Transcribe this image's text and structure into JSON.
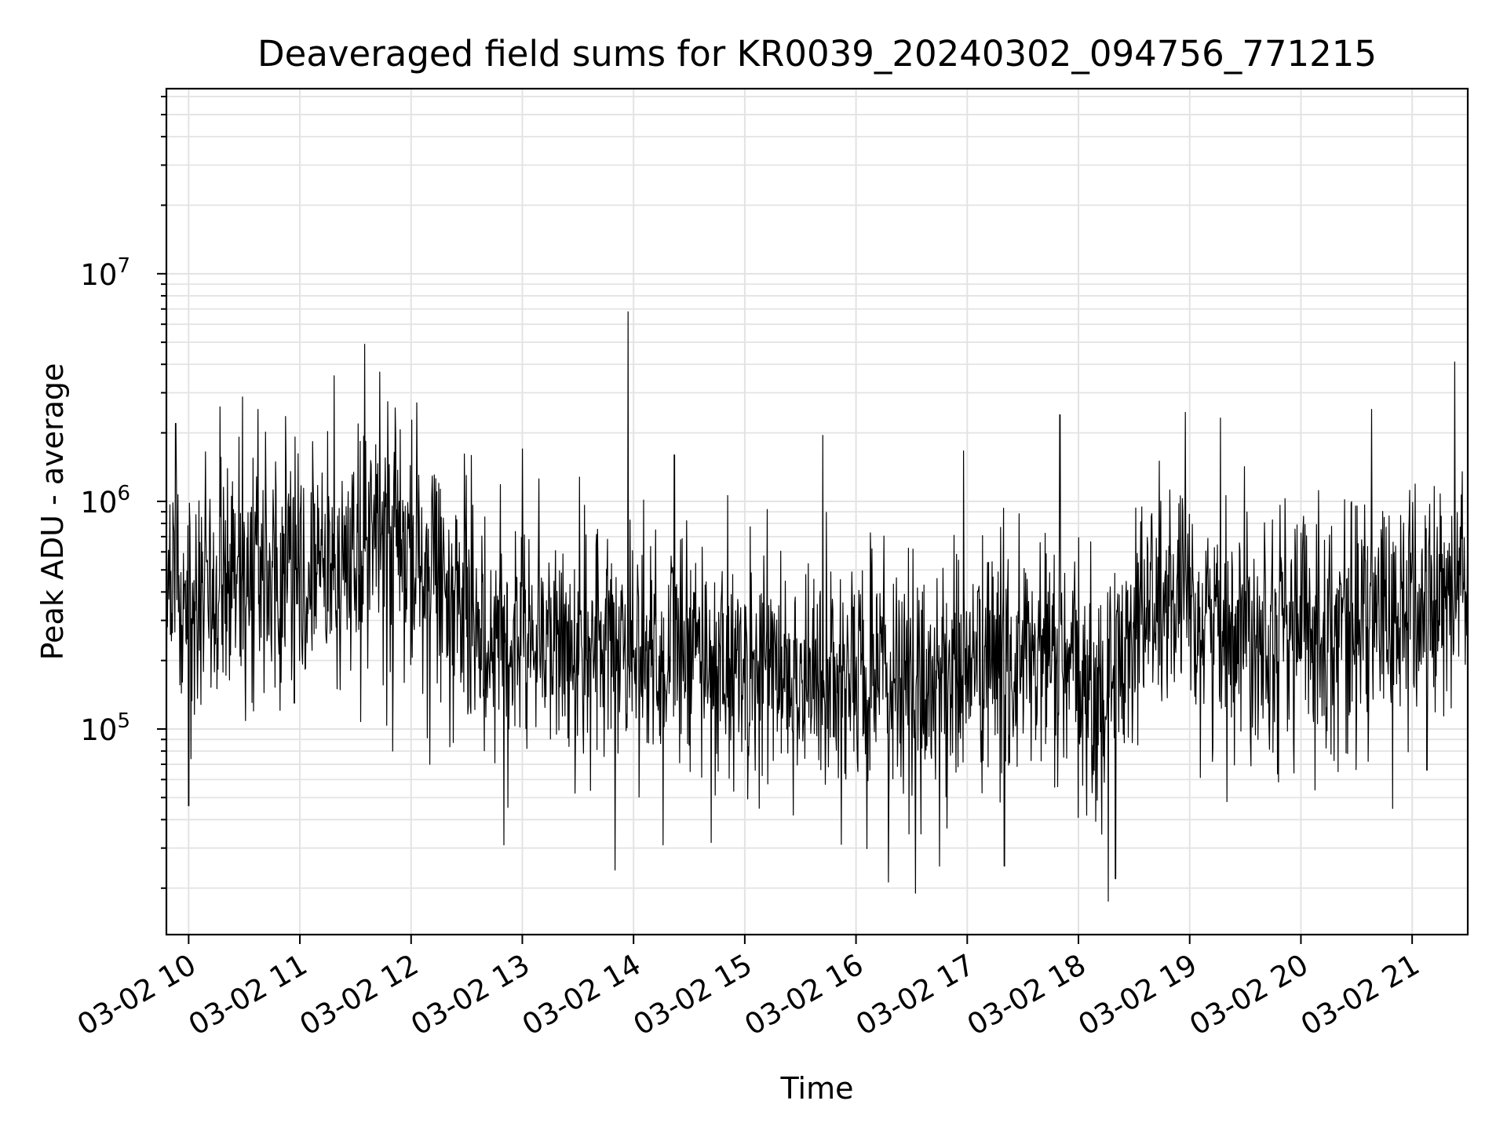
{
  "chart_data": {
    "type": "line",
    "title": "Deaveraged field sums for KR0039_20240302_094756_771215",
    "xlabel": "Time",
    "ylabel": "Peak ADU - average",
    "y_scale": "log",
    "ylim": [
      12500,
      65000000
    ],
    "xlim": [
      "03-02 09:48",
      "03-02 21:30"
    ],
    "x_ticks": [
      "03-02 10",
      "03-02 11",
      "03-02 12",
      "03-02 13",
      "03-02 14",
      "03-02 15",
      "03-02 16",
      "03-02 17",
      "03-02 18",
      "03-02 19",
      "03-02 20",
      "03-02 21"
    ],
    "y_ticks": [
      {
        "value": 100000,
        "base": "10",
        "exp": "5"
      },
      {
        "value": 1000000,
        "base": "10",
        "exp": "6"
      },
      {
        "value": 10000000,
        "base": "10",
        "exp": "7"
      }
    ],
    "grid": true,
    "line_color": "#000000",
    "series": [
      {
        "x": [
          "03-02 09:48",
          "03-02 10:00",
          "03-02 10:15",
          "03-02 10:30",
          "03-02 10:45",
          "03-02 11:00",
          "03-02 11:15",
          "03-02 11:30",
          "03-02 11:45",
          "03-02 12:00",
          "03-02 12:15",
          "03-02 12:30",
          "03-02 12:45",
          "03-02 13:00",
          "03-02 13:15",
          "03-02 13:30",
          "03-02 13:45",
          "03-02 14:00",
          "03-02 14:15",
          "03-02 14:30",
          "03-02 14:45",
          "03-02 15:00",
          "03-02 15:15",
          "03-02 15:30",
          "03-02 15:45",
          "03-02 16:00",
          "03-02 16:15",
          "03-02 16:30",
          "03-02 16:45",
          "03-02 17:00",
          "03-02 17:15",
          "03-02 17:30",
          "03-02 17:45",
          "03-02 18:00",
          "03-02 18:15",
          "03-02 18:30",
          "03-02 18:45",
          "03-02 19:00",
          "03-02 19:15",
          "03-02 19:30",
          "03-02 19:45",
          "03-02 20:00",
          "03-02 20:15",
          "03-02 20:30",
          "03-02 20:45",
          "03-02 21:00",
          "03-02 21:15",
          "03-02 21:30"
        ],
        "values": [
          300000,
          420000,
          500000,
          520000,
          500000,
          480000,
          500000,
          560000,
          700000,
          560000,
          480000,
          300000,
          250000,
          300000,
          260000,
          210000,
          230000,
          240000,
          220000,
          210000,
          200000,
          180000,
          190000,
          170000,
          150000,
          170000,
          160000,
          150000,
          170000,
          190000,
          200000,
          200000,
          210000,
          150000,
          130000,
          320000,
          360000,
          320000,
          290000,
          300000,
          290000,
          280000,
          290000,
          300000,
          310000,
          330000,
          350000,
          450000
        ]
      }
    ],
    "spikes": [
      {
        "x": "03-02 09:48",
        "value": 32000
      },
      {
        "x": "03-02 09:53",
        "value": 2200000
      },
      {
        "x": "03-02 10:00",
        "value": 46000
      },
      {
        "x": "03-02 10:17",
        "value": 2600000
      },
      {
        "x": "03-02 10:35",
        "value": 120000
      },
      {
        "x": "03-02 10:57",
        "value": 130000
      },
      {
        "x": "03-02 11:35",
        "value": 4900000
      },
      {
        "x": "03-02 11:43",
        "value": 3700000
      },
      {
        "x": "03-02 11:50",
        "value": 80000
      },
      {
        "x": "03-02 12:10",
        "value": 70000
      },
      {
        "x": "03-02 12:50",
        "value": 31000
      },
      {
        "x": "03-02 13:00",
        "value": 1700000
      },
      {
        "x": "03-02 13:50",
        "value": 24000
      },
      {
        "x": "03-02 13:57",
        "value": 6800000
      },
      {
        "x": "03-02 14:16",
        "value": 31000
      },
      {
        "x": "03-02 14:22",
        "value": 1600000
      },
      {
        "x": "03-02 15:42",
        "value": 1950000
      },
      {
        "x": "03-02 16:32",
        "value": 19000
      },
      {
        "x": "03-02 16:45",
        "value": 25000
      },
      {
        "x": "03-02 17:20",
        "value": 25000
      },
      {
        "x": "03-02 17:50",
        "value": 2400000
      },
      {
        "x": "03-02 18:20",
        "value": 22000
      },
      {
        "x": "03-02 19:20",
        "value": 48000
      },
      {
        "x": "03-02 20:20",
        "value": 65000
      },
      {
        "x": "03-02 21:08",
        "value": 66000
      },
      {
        "x": "03-02 21:23",
        "value": 4100000
      },
      {
        "x": "03-02 21:27",
        "value": 1350000
      }
    ]
  }
}
